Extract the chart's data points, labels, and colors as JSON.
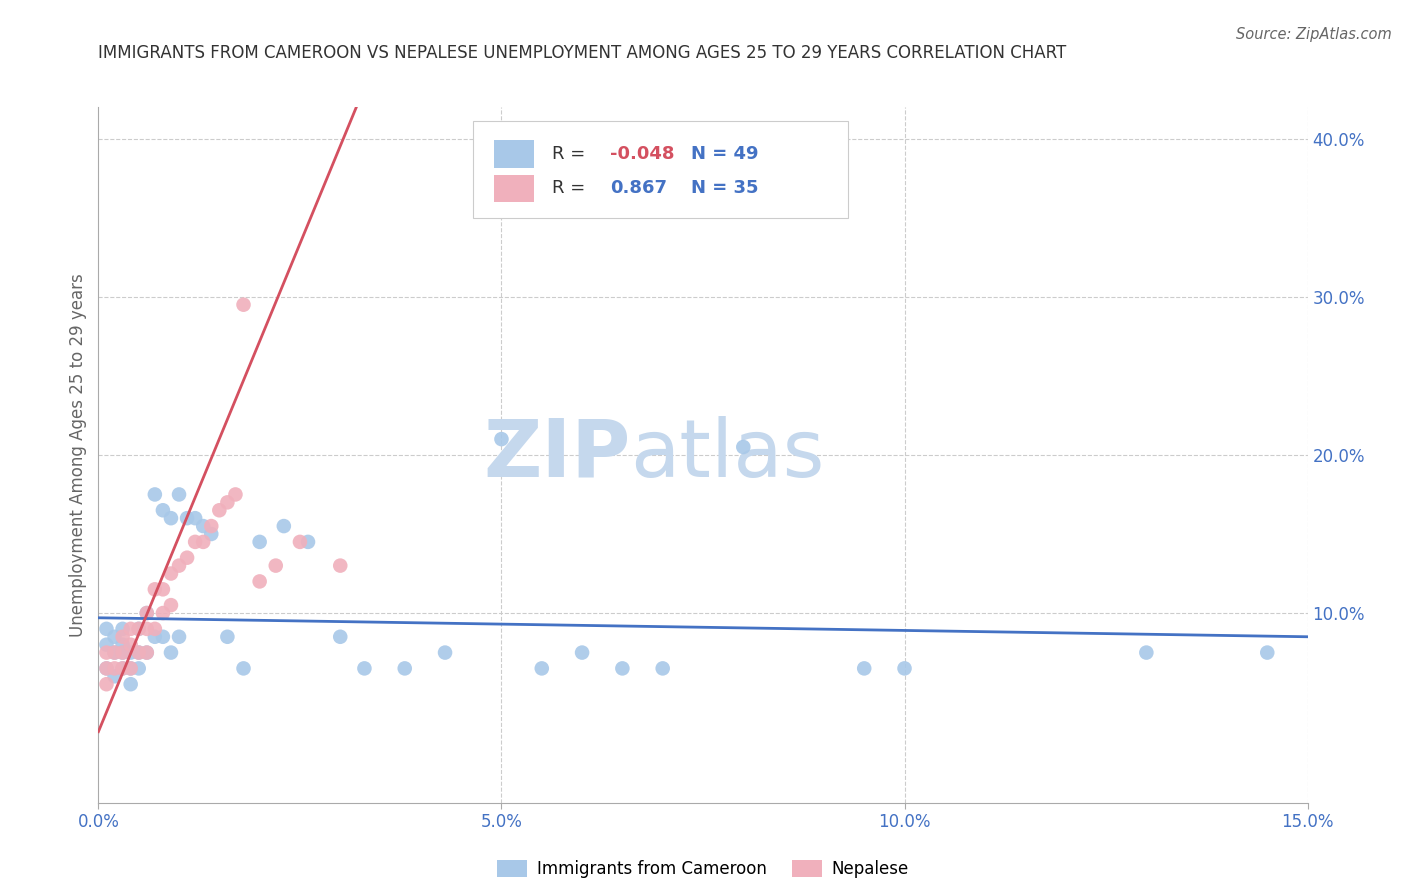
{
  "title": "IMMIGRANTS FROM CAMEROON VS NEPALESE UNEMPLOYMENT AMONG AGES 25 TO 29 YEARS CORRELATION CHART",
  "source": "Source: ZipAtlas.com",
  "ylabel": "Unemployment Among Ages 25 to 29 years",
  "xlim": [
    0,
    0.15
  ],
  "ylim": [
    -0.02,
    0.42
  ],
  "xticks": [
    0.0,
    0.05,
    0.1,
    0.15
  ],
  "xticklabels": [
    "0.0%",
    "5.0%",
    "10.0%",
    "15.0%"
  ],
  "yticks_right": [
    0.1,
    0.2,
    0.3,
    0.4
  ],
  "yticklabels_right": [
    "10.0%",
    "20.0%",
    "30.0%",
    "40.0%"
  ],
  "cameroon_color": "#a8c8e8",
  "nepalese_color": "#f0b0bc",
  "cameroon_line_color": "#4472c4",
  "nepalese_line_color": "#d45060",
  "cameroon_R": -0.048,
  "cameroon_N": 49,
  "nepalese_R": 0.867,
  "nepalese_N": 35,
  "watermark_zip": "ZIP",
  "watermark_atlas": "atlas",
  "watermark_color": "#c5d8ed",
  "grid_color": "#cccccc",
  "title_color": "#333333",
  "tick_color": "#4472c4",
  "ylabel_color": "#666666",
  "legend_border_color": "#cccccc",
  "cameroon_x": [
    0.001,
    0.001,
    0.001,
    0.002,
    0.002,
    0.002,
    0.003,
    0.003,
    0.003,
    0.003,
    0.004,
    0.004,
    0.004,
    0.005,
    0.005,
    0.005,
    0.006,
    0.006,
    0.007,
    0.007,
    0.008,
    0.008,
    0.009,
    0.009,
    0.01,
    0.01,
    0.011,
    0.012,
    0.013,
    0.014,
    0.016,
    0.018,
    0.02,
    0.023,
    0.026,
    0.03,
    0.033,
    0.038,
    0.043,
    0.05,
    0.055,
    0.06,
    0.065,
    0.07,
    0.08,
    0.095,
    0.1,
    0.13,
    0.145
  ],
  "cameroon_y": [
    0.09,
    0.08,
    0.065,
    0.085,
    0.075,
    0.06,
    0.09,
    0.08,
    0.075,
    0.065,
    0.075,
    0.065,
    0.055,
    0.09,
    0.075,
    0.065,
    0.1,
    0.075,
    0.175,
    0.085,
    0.165,
    0.085,
    0.16,
    0.075,
    0.175,
    0.085,
    0.16,
    0.16,
    0.155,
    0.15,
    0.085,
    0.065,
    0.145,
    0.155,
    0.145,
    0.085,
    0.065,
    0.065,
    0.075,
    0.21,
    0.065,
    0.075,
    0.065,
    0.065,
    0.205,
    0.065,
    0.065,
    0.075,
    0.075
  ],
  "nepalese_x": [
    0.001,
    0.001,
    0.001,
    0.002,
    0.002,
    0.003,
    0.003,
    0.003,
    0.004,
    0.004,
    0.004,
    0.005,
    0.005,
    0.006,
    0.006,
    0.006,
    0.007,
    0.007,
    0.008,
    0.008,
    0.009,
    0.009,
    0.01,
    0.011,
    0.012,
    0.013,
    0.014,
    0.015,
    0.016,
    0.017,
    0.018,
    0.02,
    0.022,
    0.025,
    0.03
  ],
  "nepalese_y": [
    0.065,
    0.075,
    0.055,
    0.075,
    0.065,
    0.085,
    0.075,
    0.065,
    0.09,
    0.08,
    0.065,
    0.09,
    0.075,
    0.1,
    0.09,
    0.075,
    0.115,
    0.09,
    0.115,
    0.1,
    0.125,
    0.105,
    0.13,
    0.135,
    0.145,
    0.145,
    0.155,
    0.165,
    0.17,
    0.175,
    0.295,
    0.12,
    0.13,
    0.145,
    0.13
  ],
  "cam_line_x0": 0.0,
  "cam_line_x1": 0.15,
  "cam_line_y0": 0.097,
  "cam_line_y1": 0.085,
  "nep_line_x0": 0.0,
  "nep_line_x1": 0.032,
  "nep_line_y0": 0.025,
  "nep_line_y1": 0.42
}
